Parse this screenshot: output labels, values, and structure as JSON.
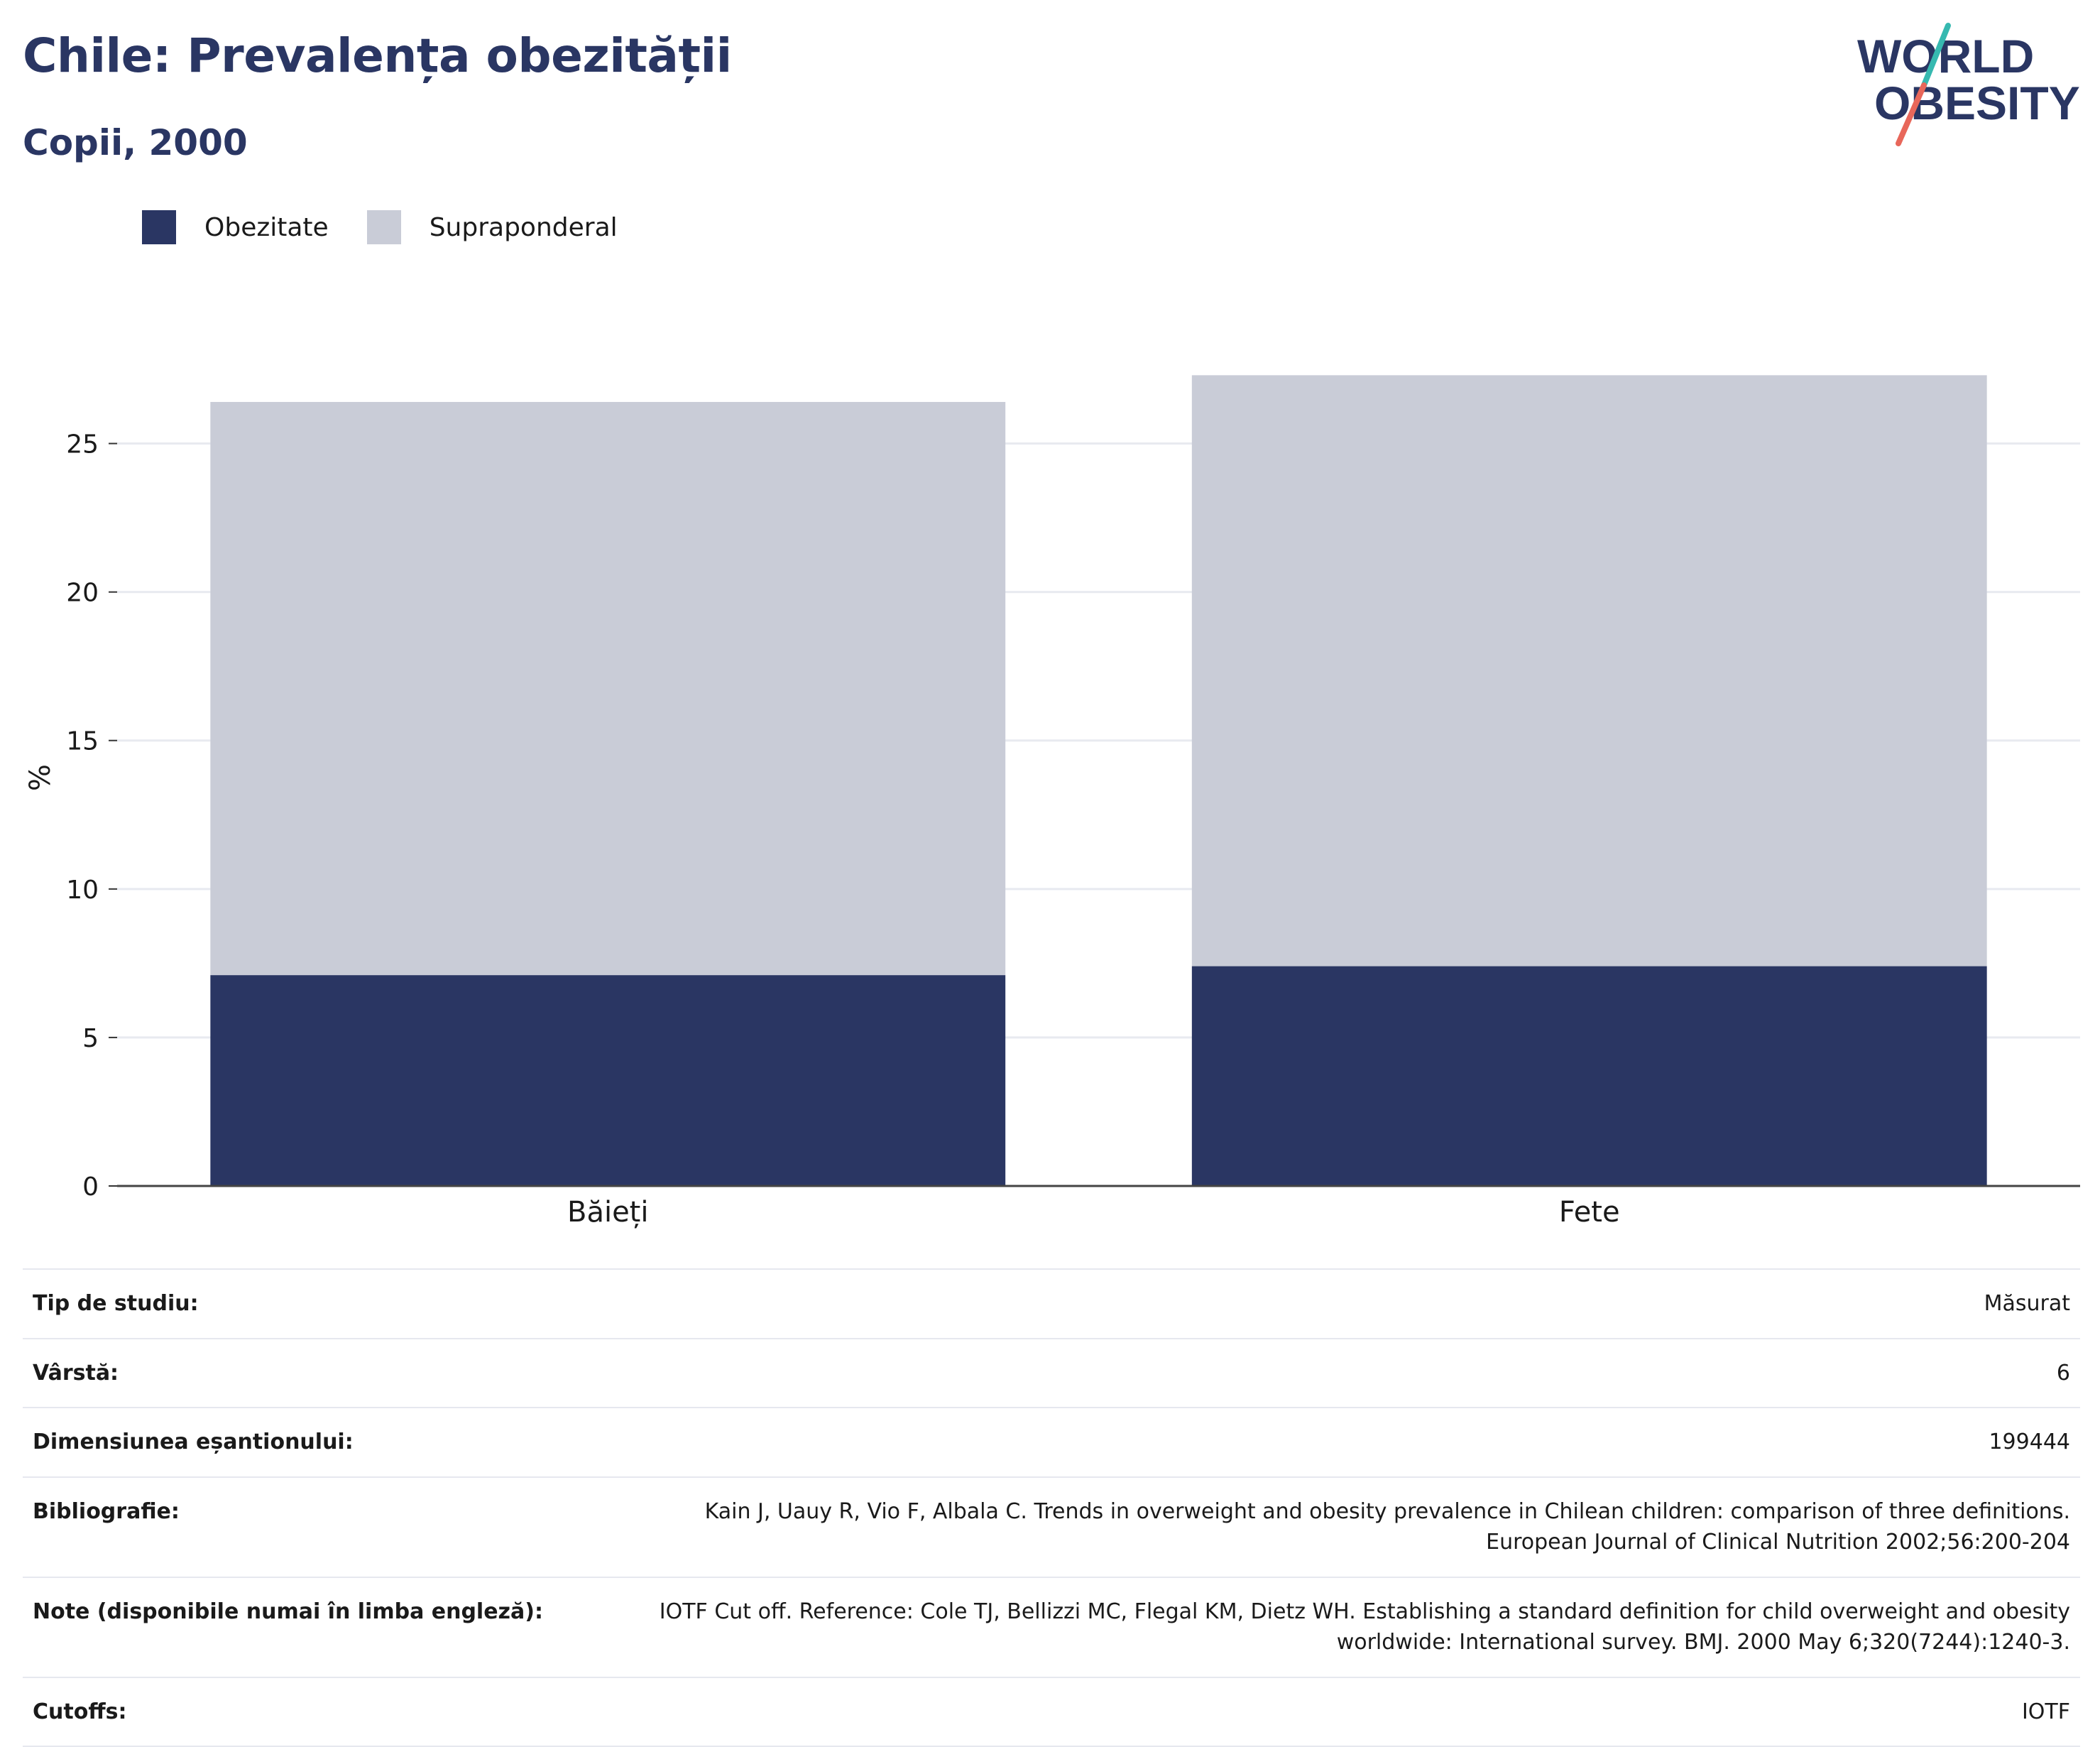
{
  "header": {
    "title": "Chile: Prevalența obezității",
    "subtitle": "Copii, 2000"
  },
  "logo": {
    "line1": "WORLD",
    "line2": "OBESITY",
    "colors": {
      "text": "#2a3663",
      "slash_top": "#36b9b0",
      "slash_bottom": "#e8675a"
    }
  },
  "legend": {
    "items": [
      {
        "label": "Obezitate",
        "color": "#2a3663"
      },
      {
        "label": "Supraponderal",
        "color": "#c9ccd7"
      }
    ]
  },
  "chart_data": {
    "type": "bar",
    "stacked": true,
    "categories": [
      "Băieți",
      "Fete"
    ],
    "series": [
      {
        "name": "Obezitate",
        "color": "#2a3663",
        "values": [
          7.1,
          7.4
        ]
      },
      {
        "name": "Supraponderal",
        "color": "#c9ccd7",
        "values": [
          19.3,
          19.9
        ]
      }
    ],
    "ylabel": "%",
    "xlabel": "",
    "ylim": [
      0,
      27.5
    ],
    "yticks": [
      0,
      5,
      10,
      15,
      20,
      25
    ],
    "grid": true,
    "legend_position": "top-left"
  },
  "info": {
    "rows": [
      {
        "key": "Tip de studiu:",
        "value": "Măsurat"
      },
      {
        "key": "Vârstă:",
        "value": "6"
      },
      {
        "key": "Dimensiunea eșantionului:",
        "value": "199444"
      },
      {
        "key": "Bibliografie:",
        "value": "Kain J, Uauy R, Vio F, Albala C. Trends in overweight and obesity prevalence in Chilean children: comparison of three definitions. European Journal of Clinical Nutrition 2002;56:200-204"
      },
      {
        "key": "Note (disponibile numai în limba engleză):",
        "value": "IOTF Cut off. Reference: Cole TJ, Bellizzi MC, Flegal KM, Dietz WH. Establishing a standard definition for child overweight and obesity worldwide: International survey. BMJ. 2000 May 6;320(7244):1240-3."
      },
      {
        "key": "Cutoffs:",
        "value": "IOTF"
      }
    ]
  }
}
